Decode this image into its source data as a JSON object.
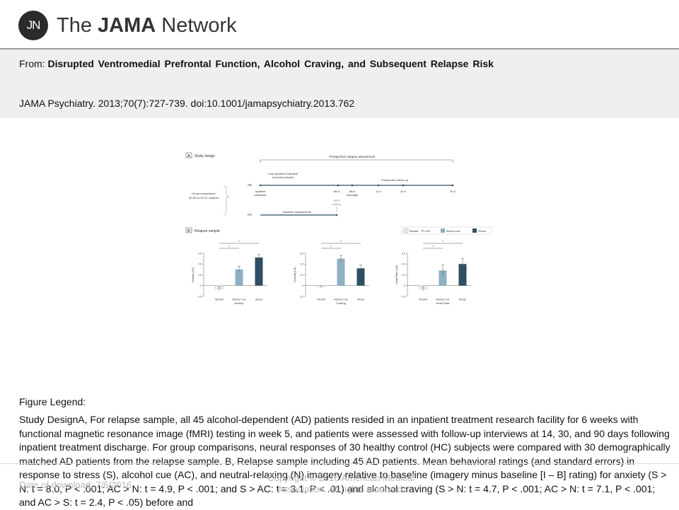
{
  "header": {
    "logo_initials": "JN",
    "logo_text_prefix": "The ",
    "logo_text_bold": "JAMA",
    "logo_text_suffix": " Network",
    "from_label": "From: ",
    "article_title": "Disrupted Ventromedial Prefrontal Function, Alcohol Craving, and Subsequent Relapse Risk",
    "citation": "JAMA Psychiatry. 2013;70(7):727-739. doi:10.1001/jamapsychiatry.2013.762"
  },
  "figure": {
    "panel_a": {
      "letter": "A",
      "title": "Study design",
      "prospective_label": "Prospective relapse assessment",
      "ad_label": "AD",
      "hc_label": "HC",
      "group_comparisons": [
        "Group comparisons",
        "30 AD vs 30 HC subjects"
      ],
      "treatment_label": [
        "4-wk inpatient treatment",
        "(recovery phase)"
      ],
      "followup_label": "Prospective follow-up",
      "baseline_label": "Baseline assessments",
      "timepoints": [
        {
          "label": [
            "Inpatient",
            "admission"
          ]
        },
        {
          "label": [
            "Wk 5"
          ]
        },
        {
          "label": [
            "Wk 6",
            "discharge"
          ]
        },
        {
          "label": [
            "14 d"
          ]
        },
        {
          "label": [
            "30 d"
          ]
        },
        {
          "label": [
            "90 d"
          ]
        }
      ],
      "fmri_label": [
        "fMRI",
        "testing"
      ]
    },
    "panel_b": {
      "letter": "B",
      "title": "Relapse sample",
      "legend": [
        {
          "name": "Neutral",
          "color": "#e9eef1"
        },
        {
          "name": "Alcohol cue",
          "color": "#8fafc4"
        },
        {
          "name": "Stress",
          "color": "#2e4f60"
        }
      ],
      "legend_note": "*P<.001"
    }
  },
  "chart_data": [
    {
      "type": "bar",
      "title": "Anxiety",
      "ylabel": "Anxiety (I-B)",
      "ylim": [
        -1.0,
        3.0
      ],
      "yticks": [
        "3.0",
        "2.0",
        "1.0",
        "0",
        "-1.0"
      ],
      "categories": [
        "Neutral",
        "Alcohol Cue",
        "Stress"
      ],
      "values": [
        -0.3,
        1.5,
        2.6
      ],
      "errors": [
        0.2,
        0.3,
        0.3
      ],
      "colors": [
        "#e9eef1",
        "#8fafc4",
        "#2e4f60"
      ],
      "annotations": [
        "*",
        "*"
      ]
    },
    {
      "type": "bar",
      "title": "Craving",
      "ylabel": "Craving (I-B)",
      "ylim": [
        -1.0,
        3.0
      ],
      "yticks": [
        "3.0",
        "2.0",
        "1.0",
        "0",
        "-1.0"
      ],
      "categories": [
        "Neutral",
        "Alcohol Cue",
        "Stress"
      ],
      "values": [
        -0.1,
        2.5,
        1.6
      ],
      "errors": [
        0.1,
        0.3,
        0.3
      ],
      "colors": [
        "#e9eef1",
        "#8fafc4",
        "#2e4f60"
      ],
      "annotations": [
        "*",
        "*"
      ]
    },
    {
      "type": "bar",
      "title": "Heart Rate",
      "ylabel": "Heart Rate (I-B)",
      "ylim": [
        -1.0,
        3.0
      ],
      "yticks": [
        "3.0",
        "2.0",
        "1.0",
        "0",
        "-1.0"
      ],
      "categories": [
        "Neutral",
        "Alcohol Cue",
        "Stress"
      ],
      "values": [
        -0.3,
        1.4,
        2.0
      ],
      "errors": [
        0.2,
        0.5,
        0.5
      ],
      "colors": [
        "#e9eef1",
        "#8fafc4",
        "#2e4f60"
      ],
      "annotations": [
        "*",
        "*"
      ]
    }
  ],
  "legend": {
    "heading": "Figure Legend:",
    "body": "Study DesignA, For relapse sample, all 45 alcohol-dependent (AD) patients resided in an inpatient treatment research facility for 6 weeks with functional magnetic resonance image (fMRI) testing in week 5, and patients were assessed with follow-up interviews at 14, 30, and 90 days following inpatient treatment discharge. For group comparisons, neural responses of 30 healthy control (HC) subjects were compared with 30 demographically matched AD patients from the relapse sample. B, Relapse sample including 45 AD patients. Mean behavioral ratings (and standard errors) in response to stress (S), alcohol cue (AC), and neutral-relaxing (N) imagery relative to baseline (imagery minus baseline [I – B] rating) for anxiety (S > N: t = 8.0, P < .001; AC > N: t = 4.9, P < .001; and S > AC: t = 3.1, P < .01) and alcohol craving (S > N: t = 4.7, P < .001; AC > N: t = 7.1, P < .001; and AC > S: t = 2.4, P < .05) before and"
  },
  "footer": {
    "date": "Date of download:  7/6/2016",
    "copyright": "Copyright © 2016 American Medical Association. All rights reserved."
  }
}
